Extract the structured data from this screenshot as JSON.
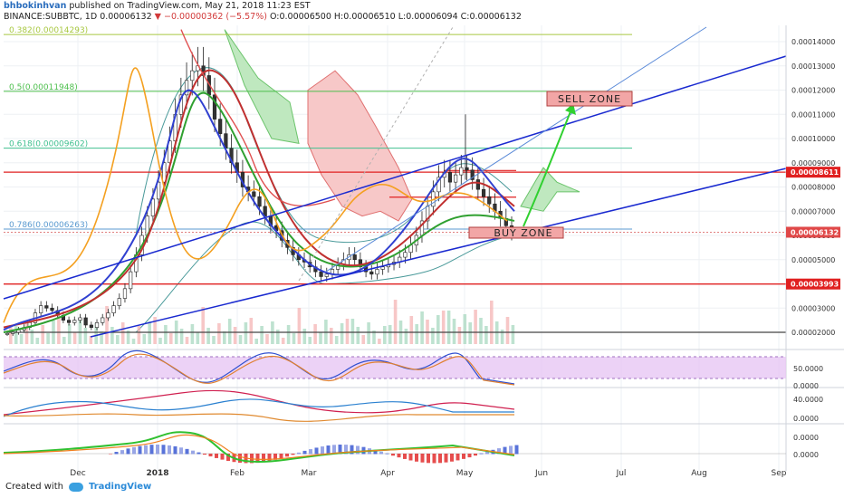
{
  "header": {
    "line1": {
      "user": "bhbokinhvan",
      "rest": " published on TradingView.com, May 21, 2018 11:23 EST"
    },
    "line2": {
      "symbol": "BINANCE:SUBBTC, 1D",
      "last": "0.00006132",
      "change": "▼ −0.00000362 (−5.57%)",
      "ohlc": "O:0.00006500 H:0.00006510 L:0.00006094 C:0.00006132"
    }
  },
  "footer": {
    "created_with": "Created with",
    "brand": "TradingView"
  },
  "chart_data": {
    "type": "candlestick",
    "x_ticks": [
      "Dec",
      "2018",
      "Feb",
      "Mar",
      "Apr",
      "May",
      "Jun",
      "Jul",
      "Aug",
      "Sep"
    ],
    "price_axis": {
      "ticks": [
        "0.00014000",
        "0.00013000",
        "0.00012000",
        "0.00011000",
        "0.00010000",
        "0.00009000",
        "0.00008000",
        "0.00007000",
        "0.00006000",
        "0.00005000",
        "0.00004000",
        "0.00003000",
        "0.00002000"
      ],
      "ylim": [
        1.45e-05,
        2.4e-05
      ]
    },
    "price_labels": [
      {
        "value": "0.00008611",
        "kind": "level"
      },
      {
        "value": "0.00006132",
        "kind": "last"
      },
      {
        "value": "0.00003993",
        "kind": "level"
      }
    ],
    "fib_levels": [
      {
        "label": "0.382(0.00014293)",
        "price": 0.00014293,
        "color": "#a8c840"
      },
      {
        "label": "0.5(0.00011948)",
        "price": 0.00011948,
        "color": "#4cbf4c"
      },
      {
        "label": "0.618(0.00009602)",
        "price": 9.602e-05,
        "color": "#40c090"
      },
      {
        "label": "0.786(0.00006263)",
        "price": 6.263e-05,
        "color": "#5a9ad0"
      }
    ],
    "horizontal_lines": [
      {
        "price": 8.611e-05,
        "color": "#e02020"
      },
      {
        "price": 3.993e-05,
        "color": "#e02020"
      },
      {
        "price": 2e-05,
        "color": "#444444"
      }
    ],
    "annotations": [
      {
        "text": "SELL ZONE"
      },
      {
        "text": "BUY ZONE"
      }
    ],
    "close_series": [
      1.95e-05,
      2e-05,
      2.1e-05,
      2.2e-05,
      2.4e-05,
      2.8e-05,
      3.1e-05,
      3e-05,
      2.9e-05,
      2.7e-05,
      2.5e-05,
      2.4e-05,
      2.5e-05,
      2.6e-05,
      2.3e-05,
      2.2e-05,
      2.4e-05,
      2.6e-05,
      2.8e-05,
      3.1e-05,
      3.4e-05,
      3.8e-05,
      4.5e-05,
      5.2e-05,
      6e-05,
      6.8e-05,
      7.5e-05,
      8.2e-05,
      9e-05,
      9.9e-05,
      0.00011,
      0.000118,
      0.000124,
      0.000128,
      0.00013,
      0.000126,
      0.000118,
      0.000108,
      0.000102,
      9.6e-05,
      9e-05,
      8.6e-05,
      8e-05,
      7.8e-05,
      7.6e-05,
      7.2e-05,
      6.8e-05,
      6.4e-05,
      6.2e-05,
      5.8e-05,
      5.5e-05,
      5.2e-05,
      5e-05,
      4.9e-05,
      4.7e-05,
      4.5e-05,
      4.3e-05,
      4.4e-05,
      4.6e-05,
      4.8e-05,
      5e-05,
      5.2e-05,
      5e-05,
      4.7e-05,
      4.5e-05,
      4.4e-05,
      4.6e-05,
      4.7e-05,
      4.8e-05,
      4.9e-05,
      5.1e-05,
      5.3e-05,
      5.6e-05,
      6e-05,
      6.6e-05,
      7.2e-05,
      7.8e-05,
      8.4e-05,
      8.6e-05,
      8.2e-05,
      8.5e-05,
      8.8e-05,
      8.7e-05,
      8.3e-05,
      7.9e-05,
      7.6e-05,
      7.3e-05,
      7e-05,
      6.7e-05,
      6.4e-05,
      6.1e-05
    ],
    "stoch_rsi": {
      "ticks": [
        "50.0000",
        "0.0000"
      ]
    },
    "rsi": {
      "ticks": [
        "40.0000",
        "0.0000"
      ]
    },
    "macd": {
      "ticks": [
        "0.0000",
        "0.0000"
      ]
    }
  }
}
